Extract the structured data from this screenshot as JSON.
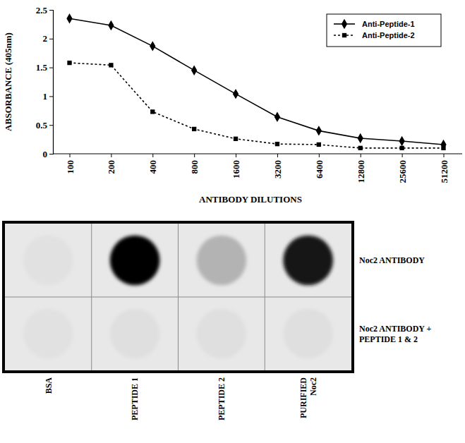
{
  "chart_data": [
    {
      "type": "line",
      "xlabel": "ANTIBODY DILUTIONS",
      "ylabel": "ABSORBANCE (405nm)",
      "categories": [
        "100",
        "200",
        "400",
        "800",
        "1600",
        "3200",
        "6400",
        "12800",
        "25600",
        "51200"
      ],
      "series": [
        {
          "name": "Anti-Peptide-1",
          "color": "#000000",
          "marker": "diamond",
          "line_style": "solid",
          "values": [
            2.35,
            2.23,
            1.87,
            1.45,
            1.04,
            0.64,
            0.4,
            0.27,
            0.22,
            0.16
          ]
        },
        {
          "name": "Anti-Peptide-2",
          "color": "#000000",
          "marker": "square",
          "line_style": "dashed",
          "values": [
            1.58,
            1.54,
            0.73,
            0.43,
            0.26,
            0.17,
            0.16,
            0.1,
            0.1,
            0.1
          ]
        }
      ],
      "ylim": [
        0,
        2.5
      ],
      "yticks": [
        0,
        0.5,
        1,
        1.5,
        2,
        2.5
      ],
      "legend": "top-right"
    },
    {
      "type": "heatmap",
      "categories": [
        "BSA",
        "PEPTIDE 1",
        "PEPTIDE 2",
        "PURIFIED Noc2"
      ],
      "series": [
        {
          "name": "Noc2 ANTIBODY",
          "values": [
            0.02,
            1,
            0.22,
            0.92
          ]
        },
        {
          "name": "Noc2 ANTIBODY + PEPTIDE 1 & 2",
          "values": [
            0.02,
            0.03,
            0.03,
            0.03
          ]
        }
      ]
    }
  ]
}
